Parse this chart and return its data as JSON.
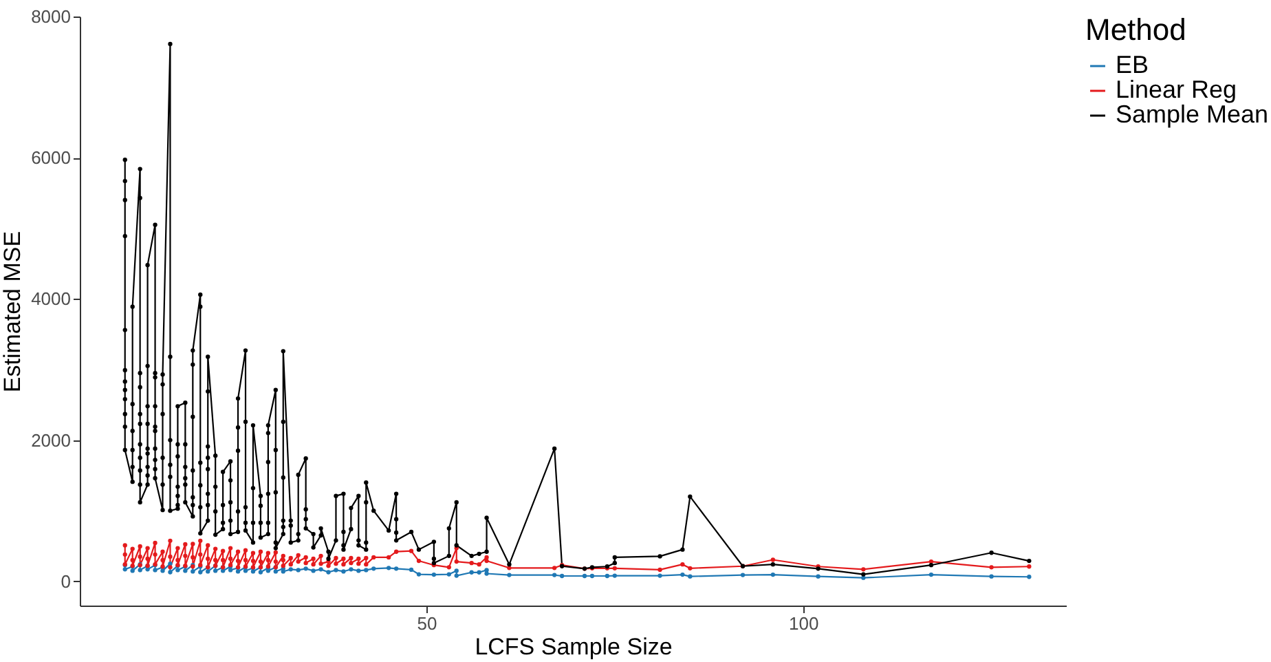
{
  "chart_data": {
    "type": "line",
    "xlabel": "LCFS Sample Size",
    "ylabel": "Estimated MSE",
    "legend_title": "Method",
    "legend": "right",
    "grid": false,
    "marker": "circle",
    "line_style": "solid",
    "xlim": [
      4,
      134.9
    ],
    "xticks": [
      50,
      100
    ],
    "ylim": [
      -343,
      8000
    ],
    "yticks": [
      0,
      2000,
      4000,
      6000,
      8000
    ],
    "series": [
      {
        "name": "EB",
        "color": "#1f78b4",
        "x": [
          10,
          10,
          11,
          11,
          12,
          12,
          13,
          13,
          14,
          14,
          15,
          15,
          16,
          16,
          17,
          17,
          18,
          18,
          19,
          19,
          20,
          20,
          21,
          21,
          22,
          22,
          23,
          23,
          24,
          24,
          25,
          25,
          26,
          26,
          27,
          27,
          28,
          28,
          29,
          29,
          30,
          30,
          31,
          31,
          32,
          33,
          34,
          35,
          36,
          37,
          38,
          39,
          40,
          41,
          42,
          43,
          45,
          46,
          48,
          49,
          51,
          53,
          54,
          54,
          56,
          57,
          58,
          58,
          61,
          67,
          68,
          71,
          72,
          74,
          75,
          81,
          84,
          85,
          92,
          96,
          102,
          108,
          117,
          125,
          130
        ],
        "values": [
          230,
          170,
          210,
          150,
          240,
          160,
          220,
          170,
          230,
          160,
          200,
          150,
          250,
          130,
          220,
          160,
          210,
          150,
          230,
          140,
          210,
          130,
          200,
          140,
          220,
          150,
          200,
          150,
          210,
          160,
          190,
          140,
          200,
          150,
          190,
          140,
          200,
          130,
          190,
          150,
          200,
          140,
          180,
          140,
          170,
          160,
          180,
          150,
          170,
          130,
          160,
          140,
          170,
          150,
          160,
          180,
          190,
          180,
          165,
          100,
          95,
          100,
          150,
          80,
          127,
          127,
          160,
          110,
          90,
          90,
          76,
          76,
          76,
          76,
          80,
          80,
          95,
          70,
          90,
          95,
          70,
          50,
          95,
          70,
          64
        ]
      },
      {
        "name": "Linear Reg",
        "color": "#e41a1c",
        "x": [
          10,
          10,
          10,
          11,
          11,
          11,
          12,
          12,
          12,
          13,
          13,
          13,
          14,
          14,
          14,
          15,
          15,
          15,
          16,
          16,
          16,
          17,
          17,
          17,
          18,
          18,
          18,
          19,
          19,
          19,
          20,
          20,
          20,
          21,
          21,
          21,
          22,
          22,
          22,
          23,
          23,
          23,
          24,
          24,
          24,
          25,
          25,
          25,
          26,
          26,
          26,
          27,
          27,
          27,
          28,
          28,
          28,
          29,
          29,
          29,
          30,
          30,
          30,
          31,
          31,
          31,
          32,
          32,
          33,
          33,
          34,
          34,
          35,
          35,
          36,
          36,
          37,
          37,
          38,
          38,
          39,
          39,
          40,
          40,
          41,
          41,
          42,
          42,
          43,
          45,
          46,
          48,
          49,
          51,
          53,
          54,
          54,
          56,
          57,
          58,
          58,
          61,
          67,
          68,
          71,
          72,
          74,
          75,
          81,
          84,
          85,
          92,
          96,
          102,
          108,
          117,
          125,
          130
        ],
        "values": [
          510,
          380,
          240,
          460,
          300,
          220,
          495,
          350,
          230,
          470,
          320,
          220,
          545,
          380,
          240,
          420,
          300,
          210,
          575,
          350,
          200,
          470,
          300,
          230,
          525,
          360,
          220,
          530,
          340,
          210,
          575,
          380,
          230,
          510,
          320,
          200,
          460,
          300,
          220,
          430,
          300,
          200,
          470,
          320,
          230,
          420,
          290,
          200,
          440,
          300,
          210,
          400,
          290,
          200,
          420,
          280,
          200,
          400,
          300,
          210,
          410,
          280,
          200,
          360,
          300,
          220,
          330,
          240,
          370,
          280,
          340,
          260,
          320,
          240,
          360,
          250,
          280,
          220,
          330,
          250,
          320,
          240,
          330,
          260,
          320,
          250,
          330,
          240,
          340,
          340,
          420,
          430,
          290,
          230,
          200,
          470,
          280,
          260,
          240,
          340,
          290,
          190,
          190,
          230,
          180,
          185,
          185,
          185,
          165,
          240,
          185,
          215,
          305,
          210,
          170,
          280,
          200,
          210
        ]
      },
      {
        "name": "Sample Mean",
        "color": "#000000",
        "x": [
          10,
          10,
          10,
          10,
          10,
          10,
          10,
          10,
          10,
          10,
          10,
          10,
          11,
          11,
          11,
          11,
          11,
          11,
          12,
          12,
          12,
          12,
          12,
          12,
          12,
          12,
          12,
          12,
          12,
          13,
          13,
          13,
          13,
          13,
          13,
          13,
          13,
          13,
          14,
          14,
          14,
          14,
          14,
          14,
          14,
          14,
          14,
          14,
          15,
          15,
          15,
          15,
          15,
          15,
          16,
          16,
          16,
          16,
          16,
          16,
          17,
          17,
          17,
          17,
          17,
          17,
          17,
          18,
          18,
          18,
          18,
          18,
          18,
          19,
          19,
          19,
          19,
          19,
          19,
          19,
          20,
          20,
          20,
          20,
          20,
          20,
          21,
          21,
          21,
          21,
          21,
          21,
          21,
          21,
          22,
          22,
          22,
          22,
          23,
          23,
          23,
          23,
          24,
          24,
          24,
          24,
          24,
          25,
          25,
          25,
          25,
          25,
          26,
          26,
          26,
          26,
          26,
          27,
          27,
          27,
          27,
          28,
          28,
          28,
          28,
          29,
          29,
          29,
          29,
          29,
          29,
          30,
          30,
          30,
          30,
          30,
          31,
          31,
          31,
          31,
          31,
          31,
          32,
          32,
          32,
          33,
          33,
          33,
          34,
          34,
          34,
          34,
          35,
          35,
          36,
          36,
          37,
          37,
          38,
          38,
          39,
          39,
          39,
          39,
          40,
          40,
          41,
          41,
          41,
          42,
          42,
          42,
          42,
          43,
          45,
          46,
          46,
          46,
          46,
          48,
          49,
          51,
          51,
          51,
          53,
          53,
          54,
          54,
          56,
          57,
          58,
          58,
          61,
          67,
          68,
          71,
          72,
          74,
          75,
          75,
          81,
          84,
          85,
          92,
          96,
          102,
          108,
          117,
          125,
          130
        ],
        "values": [
          5970,
          5670,
          5400,
          4890,
          3560,
          2990,
          2830,
          2710,
          2580,
          2370,
          2190,
          1860,
          1410,
          1620,
          1860,
          2130,
          2510,
          3890,
          5840,
          5430,
          2950,
          2750,
          2370,
          2230,
          1940,
          1750,
          1570,
          1370,
          1120,
          1370,
          1500,
          1620,
          1810,
          1880,
          2230,
          2480,
          3050,
          4480,
          5050,
          2950,
          2890,
          2480,
          2190,
          2130,
          1880,
          1720,
          1590,
          1460,
          1010,
          1370,
          1750,
          2370,
          2790,
          2930,
          7610,
          3180,
          2000,
          1650,
          1480,
          1000,
          1030,
          1080,
          1210,
          1340,
          1770,
          1940,
          2480,
          2530,
          1940,
          1620,
          1460,
          1370,
          1120,
          920,
          1080,
          1190,
          1570,
          2330,
          3070,
          3270,
          4060,
          3890,
          1680,
          1360,
          1050,
          680,
          860,
          1080,
          1240,
          1590,
          1750,
          1910,
          2690,
          3180,
          1780,
          1340,
          990,
          660,
          740,
          830,
          1080,
          1550,
          1700,
          1430,
          1120,
          860,
          670,
          700,
          990,
          1850,
          2180,
          2590,
          3270,
          2260,
          1050,
          830,
          720,
          550,
          830,
          1320,
          2210,
          1210,
          1070,
          830,
          620,
          670,
          830,
          1240,
          1690,
          2100,
          2210,
          2710,
          1860,
          1260,
          550,
          470,
          670,
          770,
          860,
          1470,
          2260,
          3260,
          860,
          790,
          550,
          580,
          670,
          1510,
          1740,
          1020,
          880,
          750,
          670,
          480,
          650,
          750,
          420,
          320,
          580,
          1210,
          1240,
          700,
          510,
          450,
          740,
          1040,
          1210,
          580,
          510,
          450,
          550,
          1120,
          1400,
          1000,
          720,
          1240,
          880,
          690,
          580,
          700,
          450,
          560,
          320,
          260,
          360,
          750,
          1120,
          510,
          360,
          390,
          420,
          900,
          240,
          1880,
          215,
          180,
          200,
          210,
          260,
          340,
          355,
          450,
          1200,
          215,
          240,
          180,
          100,
          230,
          405,
          290
        ]
      }
    ]
  }
}
